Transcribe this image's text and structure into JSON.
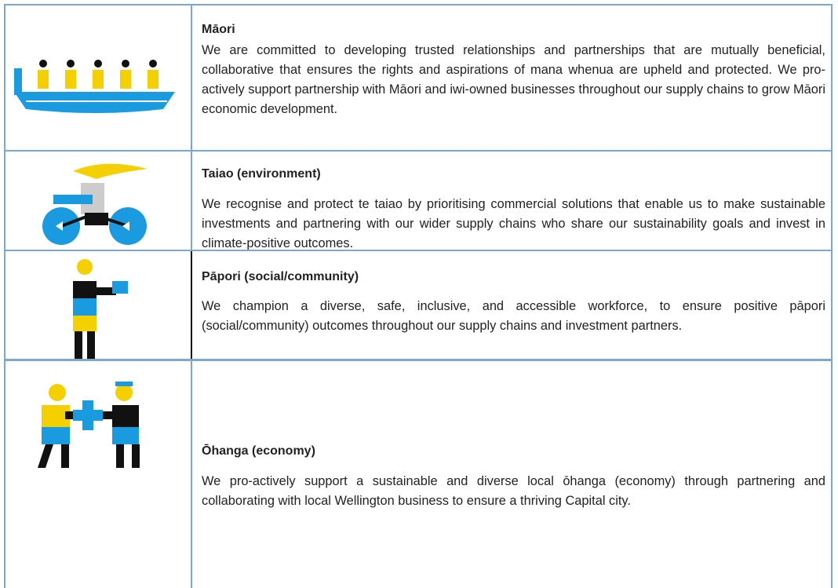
{
  "rows": [
    {
      "title": "Māori",
      "text": "We are committed to developing trusted relationships and partnerships that are mutually beneficial, collaborative that ensures the rights and aspirations of mana whenua are upheld and protected. We pro-actively support partnership with Māori and iwi-owned businesses throughout our supply chains to grow Māori economic development."
    },
    {
      "title": "Taiao (environment)",
      "text": "We recognise and protect te taiao by prioritising commercial solutions that enable us to make sustainable investments and partnering with our wider supply chains who share our sustainability goals and invest in climate-positive outcomes."
    },
    {
      "title": "Pāpori (social/community)",
      "text": "We champion a diverse, safe, inclusive, and accessible workforce, to ensure positive pāpori (social/community) outcomes throughout our supply chains and investment partners."
    },
    {
      "title": "Ōhanga (economy)",
      "text": "We pro-actively support a sustainable and diverse local ōhanga (economy) through partnering and collaborating with local Wellington business to ensure a thriving Capital city."
    }
  ]
}
